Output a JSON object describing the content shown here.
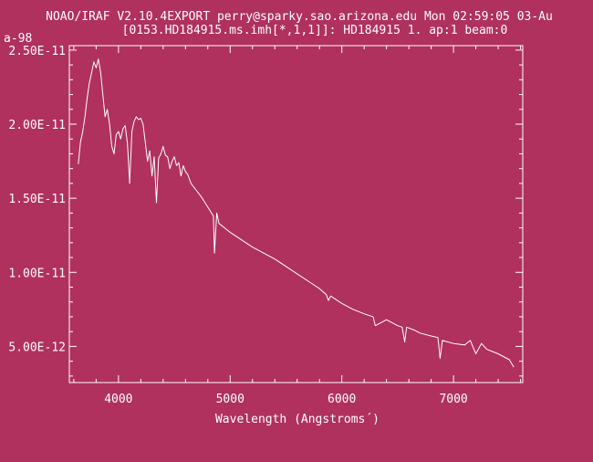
{
  "header": {
    "line1": "NOAO/IRAF V2.10.4EXPORT perry@sparky.sao.arizona.edu Mon 02:59:05 03-Au",
    "line2": "[0153.HD184915.ms.imh[*,1,1]]: HD184915 1. ap:1 beam:0",
    "corner_label": "a-98"
  },
  "colors": {
    "background": "#b0305e",
    "foreground": "#ffffff"
  },
  "chart_data": {
    "type": "line",
    "xlabel": "Wavelength (Angstroms´)",
    "ylabel": "",
    "xlim": [
      3560,
      7620
    ],
    "ylim": [
      2.56e-12,
      2.53e-11
    ],
    "x_ticks": [
      4000,
      5000,
      6000,
      7000
    ],
    "x_tick_labels": [
      "4000",
      "5000",
      "6000",
      "7000"
    ],
    "y_ticks": [
      5e-12,
      1e-11,
      1.5e-11,
      2e-11,
      2.5e-11
    ],
    "y_tick_labels": [
      "5.00E-12",
      "1.00E-11",
      "1.50E-11",
      "2.00E-11",
      "2.50E-11"
    ],
    "grid": false,
    "series": [
      {
        "x": [
          3640,
          3660,
          3680,
          3700,
          3720,
          3740,
          3760,
          3780,
          3800,
          3820,
          3840,
          3860,
          3880,
          3900,
          3920,
          3940,
          3960,
          3980,
          4000,
          4020,
          4040,
          4060,
          4080,
          4100,
          4120,
          4140,
          4160,
          4180,
          4200,
          4220,
          4240,
          4260,
          4280,
          4300,
          4320,
          4340,
          4360,
          4380,
          4400,
          4420,
          4440,
          4460,
          4480,
          4500,
          4520,
          4540,
          4560,
          4580,
          4600,
          4620,
          4650,
          4700,
          4750,
          4800,
          4850,
          4860,
          4880,
          4900,
          4950,
          5000,
          5100,
          5200,
          5300,
          5400,
          5500,
          5600,
          5700,
          5800,
          5860,
          5880,
          5900,
          6000,
          6100,
          6200,
          6280,
          6300,
          6400,
          6500,
          6540,
          6563,
          6580,
          6650,
          6700,
          6800,
          6860,
          6880,
          6900,
          7000,
          7100,
          7150,
          7200,
          7250,
          7300,
          7400,
          7500,
          7540
        ],
        "y": [
          1.73e-11,
          1.88e-11,
          1.95e-11,
          2.05e-11,
          2.18e-11,
          2.28e-11,
          2.35e-11,
          2.42e-11,
          2.38e-11,
          2.44e-11,
          2.35e-11,
          2.2e-11,
          2.05e-11,
          2.1e-11,
          2e-11,
          1.85e-11,
          1.8e-11,
          1.93e-11,
          1.95e-11,
          1.9e-11,
          1.97e-11,
          1.99e-11,
          1.87e-11,
          1.6e-11,
          1.95e-11,
          2.02e-11,
          2.05e-11,
          2.03e-11,
          2.04e-11,
          2e-11,
          1.88e-11,
          1.75e-11,
          1.82e-11,
          1.65e-11,
          1.78e-11,
          1.47e-11,
          1.77e-11,
          1.8e-11,
          1.85e-11,
          1.79e-11,
          1.78e-11,
          1.7e-11,
          1.75e-11,
          1.78e-11,
          1.72e-11,
          1.74e-11,
          1.65e-11,
          1.72e-11,
          1.68e-11,
          1.66e-11,
          1.6e-11,
          1.55e-11,
          1.5e-11,
          1.44e-11,
          1.38e-11,
          1.13e-11,
          1.4e-11,
          1.33e-11,
          1.3e-11,
          1.27e-11,
          1.22e-11,
          1.17e-11,
          1.13e-11,
          1.09e-11,
          1.04e-11,
          9.9e-12,
          9.4e-12,
          8.9e-12,
          8.5e-12,
          8.1e-12,
          8.4e-12,
          7.9e-12,
          7.5e-12,
          7.2e-12,
          7e-12,
          6.4e-12,
          6.8e-12,
          6.4e-12,
          6.3e-12,
          5.3e-12,
          6.3e-12,
          6.1e-12,
          5.9e-12,
          5.7e-12,
          5.6e-12,
          4.2e-12,
          5.4e-12,
          5.2e-12,
          5.1e-12,
          5.4e-12,
          4.5e-12,
          5.2e-12,
          4.8e-12,
          4.5e-12,
          4.1e-12,
          3.6e-12
        ]
      }
    ]
  }
}
